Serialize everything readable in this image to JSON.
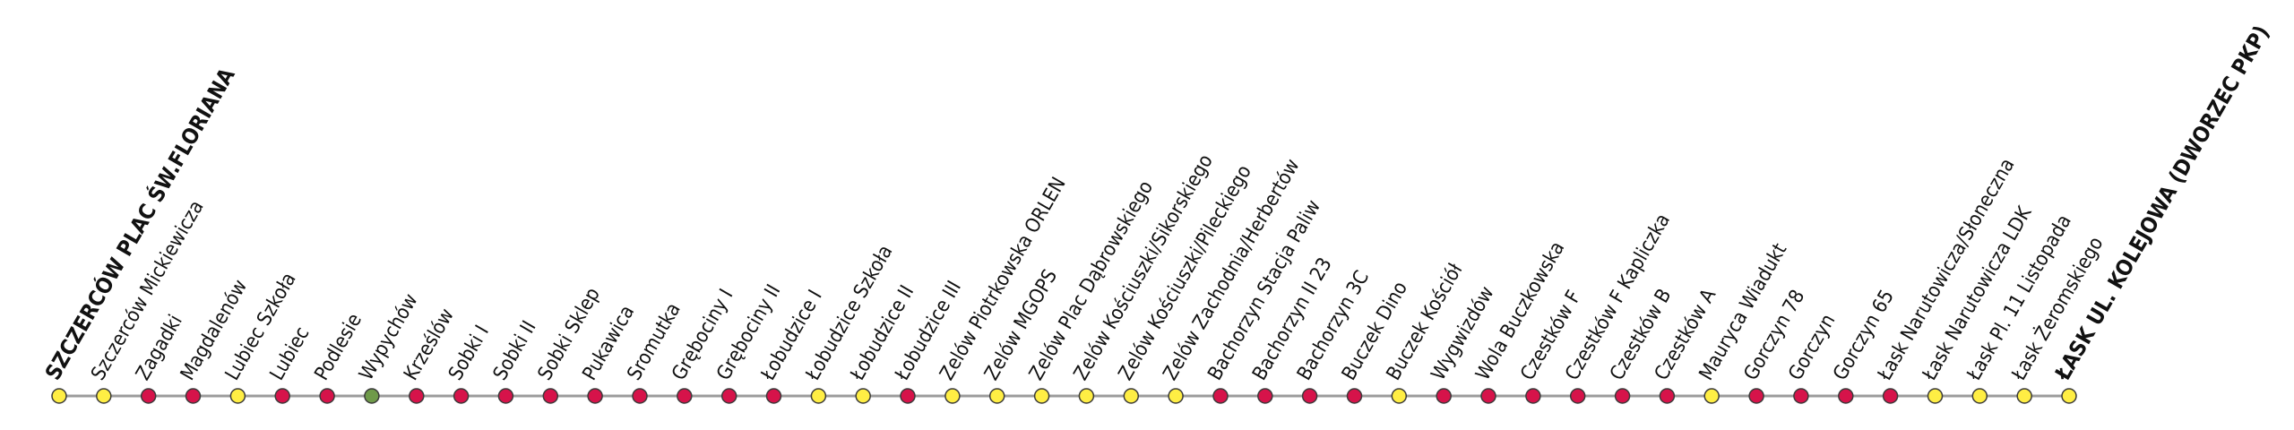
{
  "route": {
    "line_color": "#9b9b9b",
    "dot_stroke": "#3a3a3a",
    "colors": {
      "yellow": "#ffee44",
      "red": "#d6134a",
      "green": "#6f9a4a"
    },
    "stops": [
      {
        "name": "SZCZERCÓW PLAC ŚW.FLORIANA",
        "color": "yellow",
        "terminal": true
      },
      {
        "name": "Szczerców Mickiewicza",
        "color": "yellow"
      },
      {
        "name": "Zagadki",
        "color": "red"
      },
      {
        "name": "Magdalenów",
        "color": "red"
      },
      {
        "name": "Lubiec Szkoła",
        "color": "yellow"
      },
      {
        "name": "Lubiec",
        "color": "red"
      },
      {
        "name": "Podlesie",
        "color": "red"
      },
      {
        "name": "Wypychów",
        "color": "green"
      },
      {
        "name": "Krześlów",
        "color": "red"
      },
      {
        "name": "Sobki I",
        "color": "red"
      },
      {
        "name": "Sobki II",
        "color": "red"
      },
      {
        "name": "Sobki Sklep",
        "color": "red"
      },
      {
        "name": "Pukawica",
        "color": "red"
      },
      {
        "name": "Sromutka",
        "color": "red"
      },
      {
        "name": "Grębociny I",
        "color": "red"
      },
      {
        "name": "Grębociny II",
        "color": "red"
      },
      {
        "name": "Łobudzice I",
        "color": "red"
      },
      {
        "name": "Łobudzice Szkoła",
        "color": "yellow"
      },
      {
        "name": "Łobudzice II",
        "color": "yellow"
      },
      {
        "name": "Łobudzice III",
        "color": "red"
      },
      {
        "name": "Zelów Piotrkowska ORLEN",
        "color": "yellow"
      },
      {
        "name": "Zelów MGOPS",
        "color": "yellow"
      },
      {
        "name": "Zelów Plac Dąbrowskiego",
        "color": "yellow"
      },
      {
        "name": "Zelów Kościuszki/Sikorskiego",
        "color": "yellow"
      },
      {
        "name": "Zelów Kościuszki/Pileckiego",
        "color": "yellow"
      },
      {
        "name": "Zelów Zachodnia/Herbertów",
        "color": "yellow"
      },
      {
        "name": "Bachorzyn Stacja Paliw",
        "color": "red"
      },
      {
        "name": "Bachorzyn II 23",
        "color": "red"
      },
      {
        "name": "Bachorzyn 3C",
        "color": "red"
      },
      {
        "name": "Buczek Dino",
        "color": "red"
      },
      {
        "name": "Buczek Kościół",
        "color": "yellow"
      },
      {
        "name": "Wygwizdów",
        "color": "red"
      },
      {
        "name": "Wola Buczkowska",
        "color": "red"
      },
      {
        "name": "Czestków F",
        "color": "red"
      },
      {
        "name": "Czestków F Kapliczka",
        "color": "red"
      },
      {
        "name": "Czestków B",
        "color": "red"
      },
      {
        "name": "Czestków A",
        "color": "red"
      },
      {
        "name": "Mauryca Wiadukt",
        "color": "yellow"
      },
      {
        "name": "Gorczyn 78",
        "color": "red"
      },
      {
        "name": "Gorczyn",
        "color": "red"
      },
      {
        "name": "Gorczyn 65",
        "color": "red"
      },
      {
        "name": "Łask Narutowicza/Słoneczna",
        "color": "red"
      },
      {
        "name": "Łask Narutowicza LDK",
        "color": "yellow"
      },
      {
        "name": "Łask Pl. 11 Listopada",
        "color": "yellow"
      },
      {
        "name": "Łask Żeromskiego",
        "color": "yellow"
      },
      {
        "name": "ŁASK UL. KOLEJOWA (DWORZEC PKP)",
        "color": "yellow",
        "terminal": true
      }
    ]
  }
}
